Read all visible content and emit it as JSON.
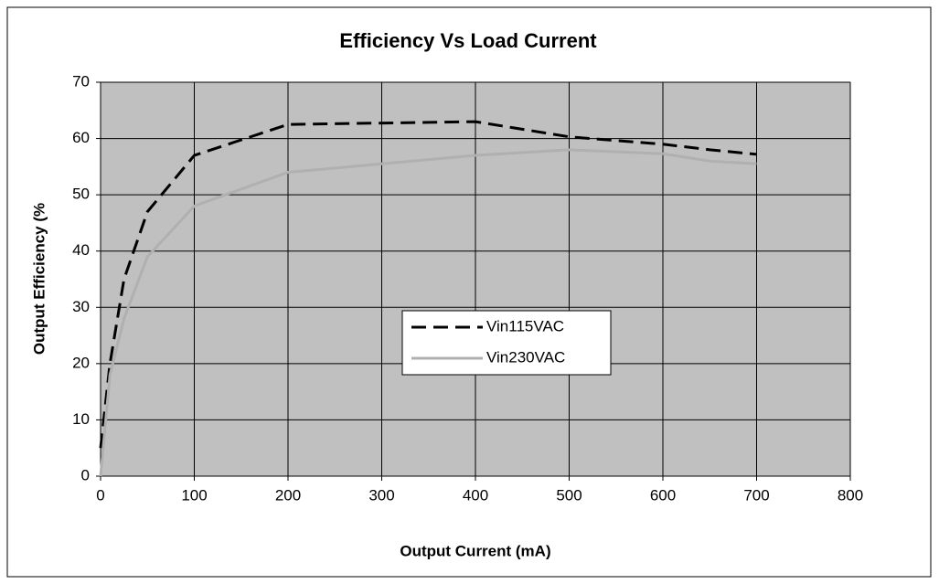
{
  "chart_data": {
    "type": "line",
    "title": "Efficiency Vs Load Current",
    "x_label": "Output Current (mA)",
    "y_label": "Output Efficiency (%",
    "xlim": [
      0,
      800
    ],
    "xticks": [
      0,
      100,
      200,
      300,
      400,
      500,
      600,
      700,
      800
    ],
    "ylim": [
      0,
      70
    ],
    "yticks": [
      0,
      10,
      20,
      30,
      40,
      50,
      60,
      70
    ],
    "grid": true,
    "legend": "center",
    "series": [
      {
        "name": "Vin115VAC",
        "color": "#000000",
        "dashed": true,
        "x": [
          0,
          10,
          25,
          50,
          100,
          200,
          400,
          500,
          600,
          650,
          700
        ],
        "values": [
          5,
          20,
          35,
          47,
          57,
          62.5,
          63,
          60.3,
          59,
          58,
          57.2
        ]
      },
      {
        "name": "Vin230VAC",
        "color": "#b0b0b0",
        "dashed": false,
        "x": [
          0,
          10,
          25,
          50,
          100,
          200,
          300,
          400,
          500,
          600,
          650,
          700
        ],
        "values": [
          0,
          18,
          28,
          39,
          48,
          54,
          55.5,
          57,
          58,
          57.3,
          56,
          55.5
        ]
      }
    ]
  }
}
